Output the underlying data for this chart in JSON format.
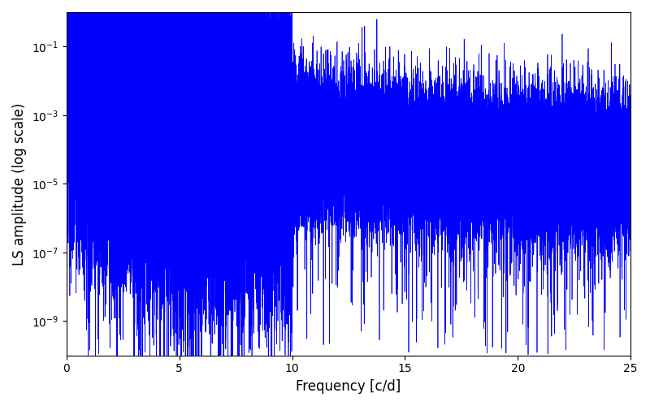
{
  "xlabel": "Frequency [c/d]",
  "ylabel": "LS amplitude (log scale)",
  "xlim": [
    0,
    25
  ],
  "ylim": [
    1e-10,
    1
  ],
  "line_color": "#0000ff",
  "linewidth": 0.5,
  "figsize": [
    8.0,
    5.0
  ],
  "dpi": 100,
  "num_points": 50000,
  "freq_max": 25.0,
  "seed": 42,
  "background_color": "#ffffff"
}
